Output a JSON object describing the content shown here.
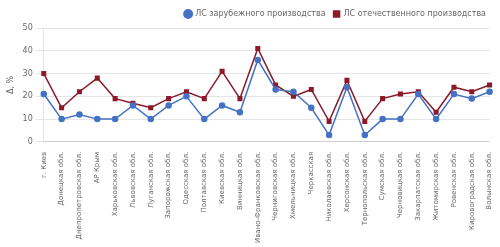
{
  "chart_data": {
    "type": "line",
    "categories": [
      "г. Киев",
      "Донецкая обл.",
      "Днепропетровская обл.",
      "АР Крым",
      "Харьковская обл.",
      "Львовская обл.",
      "Луганская обл.",
      "Запорожская обл.",
      "Одесская обл.",
      "Полтавская обл.",
      "Киевская обл.",
      "Винницкая обл.",
      "Ивано-Франковская обл.",
      "Черниговская обл.",
      "Хмельницкая обл.",
      "Черкасская",
      "Николаевская обл.",
      "Херсонская обл.",
      "Тернопольская обл.",
      "Сумская обл.",
      "Черновицкая обл.",
      "Закарпатская обл.",
      "Житомирская обл.",
      "Ровенская обл.",
      "Кировоградская обл.",
      "Волынская обл."
    ],
    "series": [
      {
        "name": "ЛС зарубежного производства",
        "color": "#4472c4",
        "marker": "circle",
        "values": [
          21,
          10,
          12,
          10,
          10,
          16,
          10,
          16,
          20,
          10,
          16,
          13,
          36,
          23,
          22,
          15,
          3,
          24,
          3,
          10,
          10,
          21,
          10,
          21,
          19,
          22
        ]
      },
      {
        "name": "ЛС отечественного производства",
        "color": "#8b1a2a",
        "marker": "square",
        "values": [
          30,
          15,
          22,
          28,
          19,
          17,
          15,
          19,
          22,
          19,
          31,
          19,
          41,
          25,
          20,
          23,
          9,
          27,
          9,
          19,
          21,
          22,
          13,
          24,
          22,
          25
        ]
      }
    ],
    "ylabel": "Δ, %",
    "ylim": [
      0,
      50
    ],
    "yticks": [
      0,
      10,
      20,
      30,
      40,
      50
    ],
    "grid": true,
    "legend": "upper right"
  }
}
